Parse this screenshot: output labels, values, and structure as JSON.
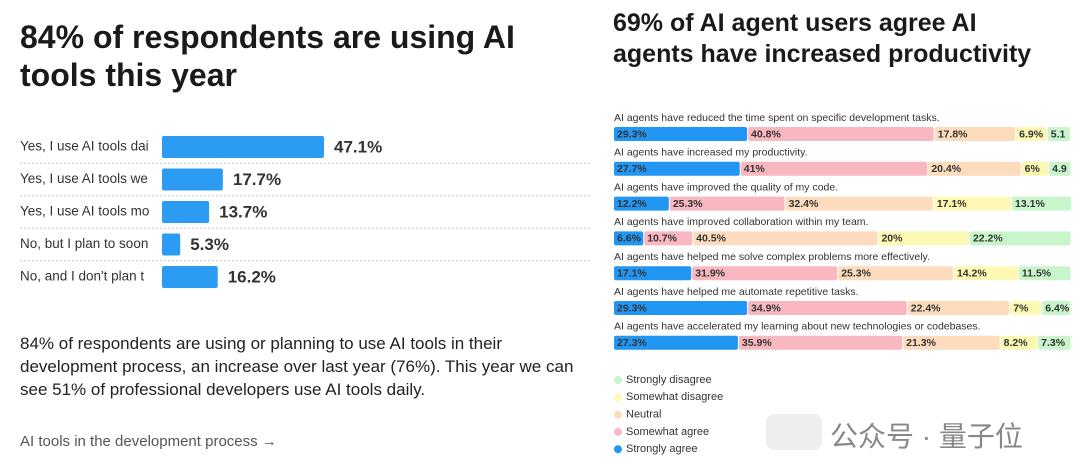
{
  "chart_data": [
    {
      "type": "bar",
      "orientation": "horizontal",
      "title": "84% of respondents are using AI tools this year",
      "categories": [
        "Yes, I use AI tools dai",
        "Yes, I use AI tools we",
        "Yes, I use AI tools mo",
        "No, but I plan to soon",
        "No, and I don't plan t"
      ],
      "values": [
        47.1,
        17.7,
        13.7,
        5.3,
        16.2
      ],
      "value_labels": [
        "47.1%",
        "17.7%",
        "13.7%",
        "5.3%",
        "16.2%"
      ],
      "color": "#2b9cf2"
    },
    {
      "type": "stacked_bar",
      "orientation": "horizontal",
      "title": "69% of AI agent users agree AI agents have increased productivity",
      "categories": [
        "AI agents have reduced the time spent on specific development tasks.",
        "AI agents have increased my productivity.",
        "AI agents have improved the quality of my code.",
        "AI agents have improved collaboration within my team.",
        "AI agents have helped me solve complex problems more effectively.",
        "AI agents have helped me automate repetitive tasks.",
        "AI agents have accelerated my learning about new technologies or codebases."
      ],
      "series": [
        {
          "name": "Strongly agree",
          "color": "#2196f3",
          "values": [
            29.3,
            27.7,
            12.2,
            6.6,
            17.1,
            29.3,
            27.3
          ],
          "value_labels": [
            "29.3%",
            "27.7%",
            "12.2%",
            "6.6%",
            "17.1%",
            "29.3%",
            "27.3%"
          ]
        },
        {
          "name": "Somewhat agree",
          "color": "#f9b8c0",
          "values": [
            40.8,
            41,
            25.3,
            10.7,
            31.9,
            34.9,
            35.9
          ],
          "value_labels": [
            "40.8%",
            "41%",
            "25.3%",
            "10.7%",
            "31.9%",
            "34.9%",
            "35.9%"
          ]
        },
        {
          "name": "Neutral",
          "color": "#fcdcbc",
          "values": [
            17.8,
            20.4,
            32.4,
            40.5,
            25.3,
            22.4,
            21.3
          ],
          "value_labels": [
            "17.8%",
            "20.4%",
            "32.4%",
            "40.5%",
            "25.3%",
            "22.4%",
            "21.3%"
          ]
        },
        {
          "name": "Somewhat disagree",
          "color": "#fdf8b4",
          "values": [
            6.9,
            6,
            17.1,
            20,
            14.2,
            7,
            8.2
          ],
          "value_labels": [
            "6.9%",
            "6%",
            "17.1%",
            "20%",
            "14.2%",
            "7%",
            "8.2%"
          ]
        },
        {
          "name": "Strongly disagree",
          "color": "#c9f5cc",
          "values": [
            5.1,
            4.9,
            13.1,
            22.2,
            11.5,
            6.4,
            7.3
          ],
          "value_labels": [
            "5.1",
            "4.9",
            "13.1%",
            "22.2%",
            "11.5%",
            "6.4%",
            "7.3%"
          ]
        }
      ]
    }
  ],
  "description": "84% of respondents are using or planning to use AI tools in their development process, an increase over last year (76%). This year we can see 51% of professional developers use AI tools daily.",
  "link": "AI tools in the development process →",
  "watermark": "公众号 · 量子位"
}
